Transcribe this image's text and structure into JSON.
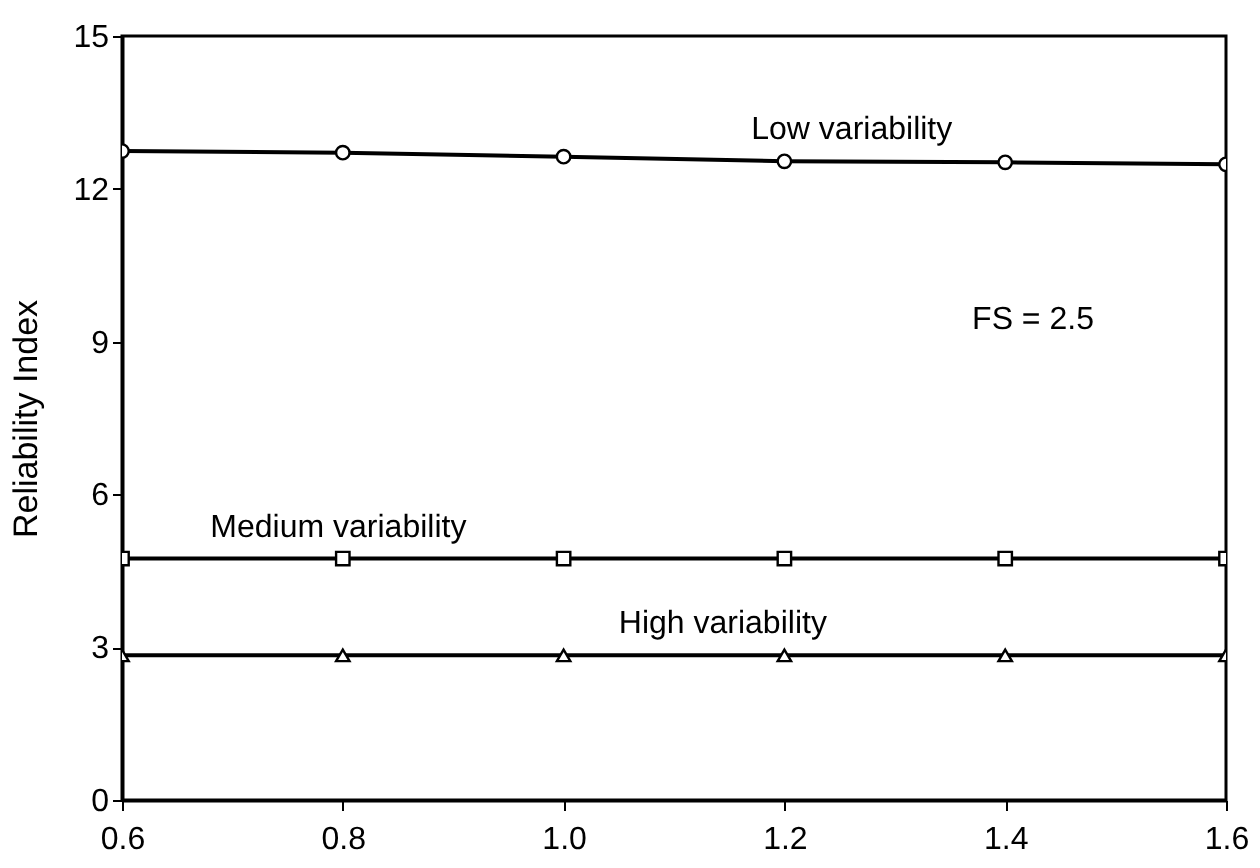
{
  "chart_data": {
    "type": "line",
    "ylabel": "Reliability Index",
    "x": [
      0.6,
      0.8,
      1.0,
      1.2,
      1.4,
      1.6
    ],
    "series": [
      {
        "name": "Low variability",
        "color": "#000000",
        "marker": "circle",
        "values": [
          12.74,
          12.71,
          12.63,
          12.54,
          12.52,
          12.48
        ]
      },
      {
        "name": "Medium variability",
        "color": "#000000",
        "marker": "square",
        "values": [
          4.74,
          4.74,
          4.74,
          4.74,
          4.74,
          4.74
        ]
      },
      {
        "name": "High variability",
        "color": "#000000",
        "marker": "triangle",
        "values": [
          2.84,
          2.84,
          2.84,
          2.84,
          2.84,
          2.84
        ]
      }
    ],
    "xlim": [
      0.6,
      1.6
    ],
    "xticks": [
      0.6,
      0.8,
      {
        "value": 1.0,
        "label": "1.0"
      },
      1.2,
      1.4,
      1.6
    ],
    "ylim": [
      0,
      15
    ],
    "yticks": [
      0,
      3,
      6,
      9,
      12,
      15
    ],
    "annotations": [
      "FS = 2.5"
    ],
    "grid": false,
    "line_style": "solid"
  }
}
